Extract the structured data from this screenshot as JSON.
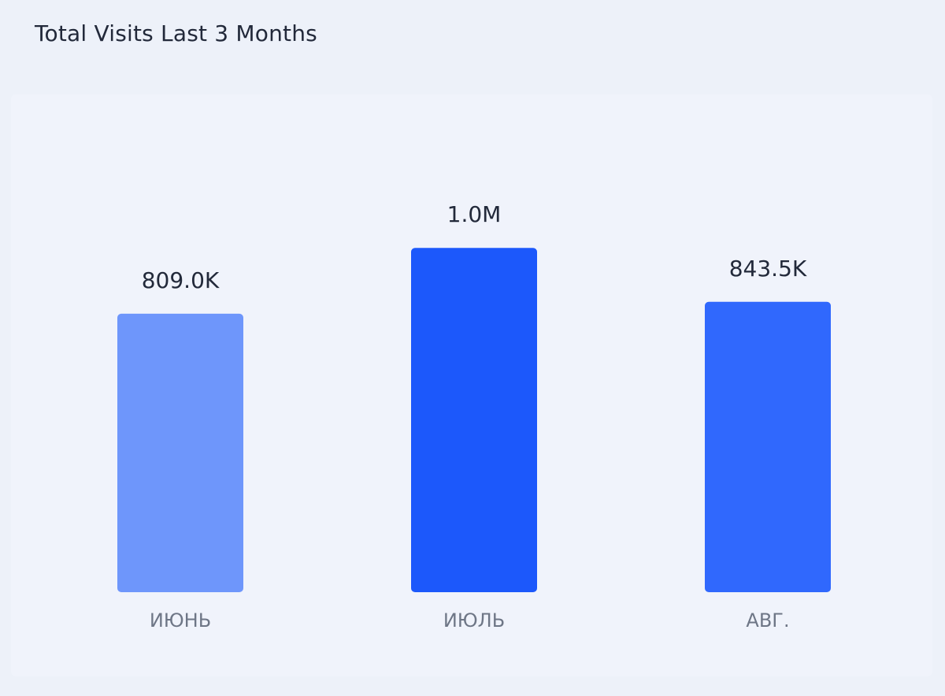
{
  "chart_data": {
    "type": "bar",
    "title": "Total Visits Last 3 Months",
    "categories": [
      "ИЮНЬ",
      "ИЮЛЬ",
      "АВГ."
    ],
    "values": [
      809000,
      1000000,
      843500
    ],
    "value_labels": [
      "809.0K",
      "1.0M",
      "843.5K"
    ],
    "ylim": [
      0,
      1245000
    ],
    "grid": false,
    "colors": [
      "#6e96fb",
      "#1c58fb",
      "#3068fd"
    ]
  }
}
